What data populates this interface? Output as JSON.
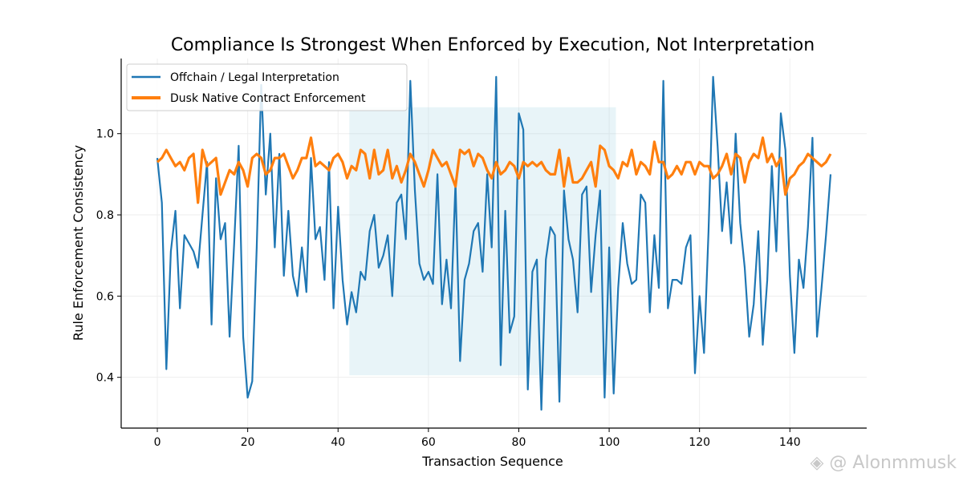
{
  "chart_data": {
    "type": "line",
    "title": "Compliance Is Strongest When Enforced by Execution, Not Interpretation",
    "xlabel": "Transaction Sequence",
    "ylabel": "Rule Enforcement Consistency",
    "xlim": [
      -8,
      157
    ],
    "ylim": [
      0.275,
      1.185
    ],
    "xticks": [
      0,
      20,
      40,
      60,
      80,
      100,
      120,
      140
    ],
    "yticks": [
      0.4,
      0.6,
      0.8,
      1.0
    ],
    "xtick_labels": [
      "0",
      "20",
      "40",
      "60",
      "80",
      "100",
      "120",
      "140"
    ],
    "ytick_labels": [
      "0.4",
      "0.6",
      "0.8",
      "1.0"
    ],
    "grid": true,
    "legend_position": "top-left",
    "highlight_region": {
      "x": [
        42.5,
        101.5
      ],
      "y": [
        0.405,
        1.065
      ],
      "color": "#add8e6"
    },
    "series": [
      {
        "name": "Offchain / Legal Interpretation",
        "color": "#1f77b4",
        "x_start": 0,
        "values": [
          0.94,
          0.83,
          0.42,
          0.71,
          0.81,
          0.57,
          0.75,
          0.73,
          0.71,
          0.67,
          0.8,
          0.93,
          0.53,
          0.89,
          0.74,
          0.78,
          0.5,
          0.73,
          0.97,
          0.5,
          0.35,
          0.39,
          0.72,
          1.12,
          0.85,
          1.0,
          0.72,
          0.95,
          0.65,
          0.81,
          0.65,
          0.6,
          0.72,
          0.61,
          0.94,
          0.74,
          0.77,
          0.64,
          0.93,
          0.57,
          0.82,
          0.64,
          0.53,
          0.61,
          0.56,
          0.66,
          0.64,
          0.76,
          0.8,
          0.67,
          0.7,
          0.75,
          0.6,
          0.83,
          0.85,
          0.74,
          1.13,
          0.86,
          0.68,
          0.64,
          0.66,
          0.63,
          0.9,
          0.58,
          0.69,
          0.57,
          0.88,
          0.44,
          0.64,
          0.68,
          0.76,
          0.78,
          0.66,
          0.9,
          0.72,
          1.14,
          0.43,
          0.81,
          0.51,
          0.55,
          1.05,
          1.01,
          0.37,
          0.66,
          0.69,
          0.32,
          0.69,
          0.77,
          0.75,
          0.34,
          0.86,
          0.74,
          0.69,
          0.56,
          0.85,
          0.87,
          0.61,
          0.75,
          0.86,
          0.35,
          0.72,
          0.36,
          0.62,
          0.78,
          0.68,
          0.63,
          0.64,
          0.85,
          0.83,
          0.56,
          0.75,
          0.62,
          1.13,
          0.57,
          0.64,
          0.64,
          0.63,
          0.72,
          0.75,
          0.41,
          0.6,
          0.46,
          0.76,
          1.14,
          0.97,
          0.76,
          0.88,
          0.73,
          1.0,
          0.78,
          0.67,
          0.5,
          0.58,
          0.76,
          0.48,
          0.64,
          0.92,
          0.71,
          1.05,
          0.96,
          0.65,
          0.46,
          0.69,
          0.62,
          0.77,
          0.99,
          0.5,
          0.62,
          0.75,
          0.9
        ]
      },
      {
        "name": "Dusk Native Contract Enforcement",
        "color": "#ff7f0e",
        "x_start": 0,
        "values": [
          0.93,
          0.94,
          0.96,
          0.94,
          0.92,
          0.93,
          0.91,
          0.94,
          0.95,
          0.83,
          0.96,
          0.92,
          0.93,
          0.94,
          0.85,
          0.88,
          0.91,
          0.9,
          0.93,
          0.91,
          0.87,
          0.94,
          0.95,
          0.94,
          0.9,
          0.91,
          0.94,
          0.94,
          0.95,
          0.92,
          0.89,
          0.91,
          0.94,
          0.94,
          0.99,
          0.92,
          0.93,
          0.92,
          0.91,
          0.94,
          0.95,
          0.93,
          0.89,
          0.92,
          0.91,
          0.96,
          0.95,
          0.89,
          0.96,
          0.9,
          0.91,
          0.96,
          0.89,
          0.92,
          0.88,
          0.91,
          0.95,
          0.93,
          0.9,
          0.87,
          0.91,
          0.96,
          0.94,
          0.92,
          0.93,
          0.9,
          0.87,
          0.96,
          0.95,
          0.96,
          0.92,
          0.95,
          0.94,
          0.91,
          0.89,
          0.93,
          0.9,
          0.91,
          0.93,
          0.92,
          0.89,
          0.93,
          0.92,
          0.93,
          0.92,
          0.93,
          0.91,
          0.9,
          0.9,
          0.96,
          0.87,
          0.94,
          0.88,
          0.88,
          0.89,
          0.91,
          0.93,
          0.87,
          0.97,
          0.96,
          0.92,
          0.91,
          0.89,
          0.93,
          0.92,
          0.96,
          0.9,
          0.93,
          0.92,
          0.9,
          0.98,
          0.93,
          0.93,
          0.89,
          0.9,
          0.92,
          0.9,
          0.93,
          0.93,
          0.9,
          0.93,
          0.92,
          0.92,
          0.89,
          0.9,
          0.92,
          0.95,
          0.9,
          0.95,
          0.94,
          0.88,
          0.93,
          0.95,
          0.94,
          0.99,
          0.93,
          0.95,
          0.92,
          0.94,
          0.85,
          0.89,
          0.9,
          0.92,
          0.93,
          0.95,
          0.94,
          0.93,
          0.92,
          0.93,
          0.95
        ]
      }
    ]
  },
  "watermark": {
    "text": "@ Alonmmusk",
    "icon": "diamond-logo-icon"
  }
}
